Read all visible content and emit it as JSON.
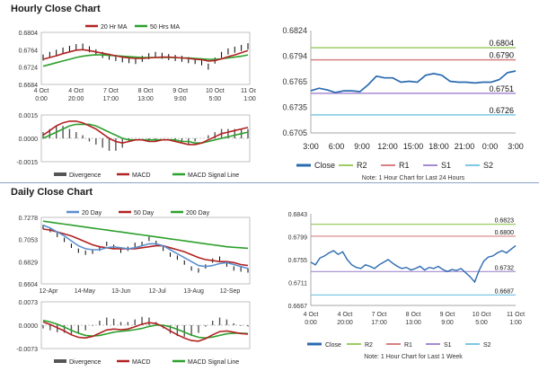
{
  "sections": {
    "hourly_title": "Hourly Close Chart",
    "daily_title": "Daily Close Chart"
  },
  "colors": {
    "close": "#2a6ab0",
    "r2": "#9ccc65",
    "r1": "#d98080",
    "s1": "#a58ad0",
    "s2": "#7ec8e3",
    "ma20": "#b22222",
    "ma50": "#2ca02c",
    "macd": "#b22222",
    "signal": "#2ca02c",
    "divergence": "#555555",
    "day20": "#5b8fcf",
    "day50": "#b22222",
    "day200": "#2ca02c",
    "price": "#000000"
  },
  "chart_data": [
    {
      "id": "hourly_price",
      "type": "line",
      "legend": [
        "20 Hr MA",
        "50 Hrs MA"
      ],
      "yticks": [
        "0.6804",
        "0.6764",
        "0.6724",
        "0.6684"
      ],
      "ylim": [
        0.6684,
        0.6804
      ],
      "xticks": [
        "4 Oct\n0:00",
        "4 Oct\n20:00",
        "7 Oct\n17:00",
        "8 Oct\n13:00",
        "9 Oct\n9:00",
        "10 Oct\n5:00",
        "11 Oct\n1:00"
      ],
      "price": [
        0.6746,
        0.6752,
        0.6757,
        0.6762,
        0.6766,
        0.677,
        0.6771,
        0.6765,
        0.6758,
        0.6752,
        0.6748,
        0.6745,
        0.6742,
        0.674,
        0.6738,
        0.6743,
        0.6749,
        0.6752,
        0.675,
        0.6747,
        0.6745,
        0.6743,
        0.674,
        0.6738,
        0.6735,
        0.6725,
        0.6739,
        0.6752,
        0.676,
        0.6764,
        0.6768,
        0.6772
      ],
      "ma20": [
        0.6742,
        0.6746,
        0.675,
        0.6755,
        0.6759,
        0.6763,
        0.6764,
        0.6762,
        0.6759,
        0.6756,
        0.6753,
        0.675,
        0.6747,
        0.6745,
        0.6744,
        0.6744,
        0.6745,
        0.6746,
        0.6747,
        0.6747,
        0.6746,
        0.6745,
        0.6744,
        0.6742,
        0.6741,
        0.6738,
        0.6739,
        0.6743,
        0.6748,
        0.6752,
        0.6757,
        0.6762
      ],
      "ma50": [
        0.6726,
        0.673,
        0.6734,
        0.6738,
        0.6742,
        0.6746,
        0.6749,
        0.6751,
        0.6752,
        0.6752,
        0.6751,
        0.675,
        0.6749,
        0.6748,
        0.6747,
        0.6746,
        0.6746,
        0.6746,
        0.6746,
        0.6746,
        0.6746,
        0.6745,
        0.6745,
        0.6744,
        0.6743,
        0.6742,
        0.6742,
        0.6743,
        0.6745,
        0.6747,
        0.6749,
        0.6752
      ]
    },
    {
      "id": "hourly_macd",
      "type": "line",
      "legend": [
        "Divergence",
        "MACD",
        "MACD Signal Line"
      ],
      "yticks": [
        "0.0015",
        "0.0000",
        "-0.0015"
      ],
      "ylim": [
        -0.0015,
        0.0015
      ],
      "macd": [
        0.0002,
        0.0005,
        0.0008,
        0.001,
        0.0011,
        0.0011,
        0.001,
        0.0008,
        0.0006,
        0.0003,
        0.0,
        -0.0002,
        -0.0003,
        -0.0002,
        -0.0001,
        -0.0001,
        -0.0002,
        -0.0002,
        -0.0001,
        -0.0001,
        -0.0002,
        -0.0003,
        -0.0004,
        -0.0004,
        -0.0003,
        -0.0001,
        0.0001,
        0.0003,
        0.0004,
        0.0005,
        0.0006,
        0.0007
      ],
      "signal": [
        0.0,
        0.0002,
        0.0004,
        0.0006,
        0.0008,
        0.0009,
        0.0009,
        0.0009,
        0.0008,
        0.0006,
        0.0004,
        0.0002,
        0.0,
        -0.0001,
        -0.0001,
        -0.0001,
        -0.0001,
        -0.0001,
        -0.0001,
        -0.0001,
        -0.0001,
        -0.0002,
        -0.0002,
        -0.0003,
        -0.0003,
        -0.0002,
        -0.0001,
        0.0,
        0.0001,
        0.0002,
        0.0003,
        0.0004
      ]
    },
    {
      "id": "hourly_levels",
      "type": "line",
      "yticks": [
        "0.6824",
        "0.6794",
        "0.6765",
        "0.6735",
        "0.6705"
      ],
      "ylim": [
        0.6705,
        0.6824
      ],
      "xticks": [
        "3:00",
        "6:00",
        "9:00",
        "12:00",
        "15:00",
        "18:00",
        "21:00",
        "0:00",
        "3:00"
      ],
      "close": [
        0.6754,
        0.6757,
        0.6755,
        0.6752,
        0.6754,
        0.6754,
        0.6753,
        0.6761,
        0.6771,
        0.6769,
        0.6769,
        0.6764,
        0.6765,
        0.6764,
        0.6772,
        0.6774,
        0.6772,
        0.6765,
        0.6764,
        0.6764,
        0.6763,
        0.6764,
        0.6764,
        0.6767,
        0.6775,
        0.6777
      ],
      "levels": [
        {
          "name": "R2",
          "value": 0.6804,
          "label": "0.6804"
        },
        {
          "name": "R1",
          "value": 0.679,
          "label": "0.6790"
        },
        {
          "name": "S1",
          "value": 0.6751,
          "label": "0.6751"
        },
        {
          "name": "S2",
          "value": 0.6726,
          "label": "0.6726"
        }
      ],
      "legend": [
        "Close",
        "R2",
        "R1",
        "S1",
        "S2"
      ],
      "note": "Note: 1 Hour Chart for Last 24 Hours"
    },
    {
      "id": "daily_price",
      "type": "line",
      "legend": [
        "20 Day",
        "50 Day",
        "200 Day"
      ],
      "yticks": [
        "0.7278",
        "0.7053",
        "0.6829",
        "0.6604"
      ],
      "ylim": [
        0.6604,
        0.7278
      ],
      "xticks": [
        "12-Apr",
        "14-May",
        "13-Jun",
        "12-Jul",
        "13-Aug",
        "12-Sep"
      ],
      "price": [
        0.718,
        0.715,
        0.71,
        0.705,
        0.699,
        0.694,
        0.692,
        0.693,
        0.696,
        0.701,
        0.698,
        0.694,
        0.696,
        0.7,
        0.701,
        0.706,
        0.702,
        0.696,
        0.69,
        0.687,
        0.682,
        0.676,
        0.674,
        0.678,
        0.684,
        0.686,
        0.68,
        0.676,
        0.675,
        0.674
      ],
      "day20": [
        0.72,
        0.717,
        0.713,
        0.709,
        0.704,
        0.699,
        0.696,
        0.695,
        0.695,
        0.697,
        0.698,
        0.697,
        0.696,
        0.697,
        0.699,
        0.701,
        0.701,
        0.699,
        0.695,
        0.691,
        0.687,
        0.683,
        0.679,
        0.678,
        0.679,
        0.681,
        0.682,
        0.68,
        0.678,
        0.676
      ],
      "day50": [
        0.716,
        0.715,
        0.713,
        0.711,
        0.709,
        0.706,
        0.703,
        0.7,
        0.698,
        0.697,
        0.696,
        0.696,
        0.696,
        0.696,
        0.697,
        0.698,
        0.699,
        0.699,
        0.697,
        0.695,
        0.693,
        0.69,
        0.687,
        0.685,
        0.684,
        0.683,
        0.683,
        0.682,
        0.68,
        0.679
      ],
      "day200": [
        0.724,
        0.723,
        0.722,
        0.721,
        0.72,
        0.719,
        0.718,
        0.717,
        0.716,
        0.715,
        0.714,
        0.713,
        0.712,
        0.711,
        0.71,
        0.709,
        0.708,
        0.707,
        0.706,
        0.705,
        0.704,
        0.703,
        0.702,
        0.701,
        0.7,
        0.699,
        0.698,
        0.6975,
        0.697,
        0.6965
      ]
    },
    {
      "id": "daily_macd",
      "type": "line",
      "legend": [
        "Divergence",
        "MACD",
        "MACD Signal Line"
      ],
      "yticks": [
        "0.0073",
        "0.0000",
        "-0.0073"
      ],
      "ylim": [
        -0.0073,
        0.0073
      ],
      "macd": [
        0.001,
        0.0002,
        -0.0008,
        -0.0018,
        -0.003,
        -0.0038,
        -0.004,
        -0.0035,
        -0.0025,
        -0.0015,
        -0.0012,
        -0.0014,
        -0.0012,
        -0.0005,
        0.0003,
        0.0008,
        0.0005,
        -0.0005,
        -0.0018,
        -0.003,
        -0.004,
        -0.0048,
        -0.005,
        -0.0042,
        -0.003,
        -0.002,
        -0.0018,
        -0.0022,
        -0.0026,
        -0.0028
      ],
      "signal": [
        0.0015,
        0.001,
        0.0003,
        -0.0006,
        -0.0016,
        -0.0025,
        -0.0032,
        -0.0034,
        -0.0032,
        -0.0027,
        -0.0022,
        -0.0019,
        -0.0017,
        -0.0014,
        -0.001,
        -0.0004,
        0.0,
        0.0,
        -0.0005,
        -0.0013,
        -0.0022,
        -0.0031,
        -0.0038,
        -0.004,
        -0.0037,
        -0.0032,
        -0.0027,
        -0.0025,
        -0.0025,
        -0.0026
      ]
    },
    {
      "id": "daily_levels",
      "type": "line",
      "yticks": [
        "0.6843",
        "0.6799",
        "0.6755",
        "0.6711",
        "0.6667"
      ],
      "ylim": [
        0.6667,
        0.6843
      ],
      "xticks": [
        "4 Oct\n0:00",
        "4 Oct\n20:00",
        "7 Oct\n17:00",
        "8 Oct\n13:00",
        "9 Oct\n9:00",
        "10 Oct\n5:00",
        "11 Oct\n1:00"
      ],
      "close": [
        0.675,
        0.6745,
        0.6758,
        0.6762,
        0.6768,
        0.6772,
        0.6765,
        0.677,
        0.6755,
        0.6745,
        0.674,
        0.6738,
        0.6745,
        0.6742,
        0.6738,
        0.6745,
        0.675,
        0.6755,
        0.6748,
        0.6742,
        0.6738,
        0.674,
        0.6735,
        0.6738,
        0.6742,
        0.6735,
        0.674,
        0.6738,
        0.6742,
        0.6736,
        0.6732,
        0.6736,
        0.6734,
        0.6738,
        0.673,
        0.6722,
        0.6712,
        0.6735,
        0.6752,
        0.676,
        0.6762,
        0.6768,
        0.6772,
        0.6768,
        0.6775,
        0.6782
      ],
      "levels": [
        {
          "name": "R2",
          "value": 0.6823,
          "label": "0.6823"
        },
        {
          "name": "R1",
          "value": 0.68,
          "label": "0.6800"
        },
        {
          "name": "S1",
          "value": 0.6732,
          "label": "0.6732"
        },
        {
          "name": "S2",
          "value": 0.6687,
          "label": "0.6687"
        }
      ],
      "legend": [
        "Close",
        "R2",
        "R1",
        "S1",
        "S2"
      ],
      "note": "Note: 1 Hour Chart for Last 1 Week"
    }
  ]
}
